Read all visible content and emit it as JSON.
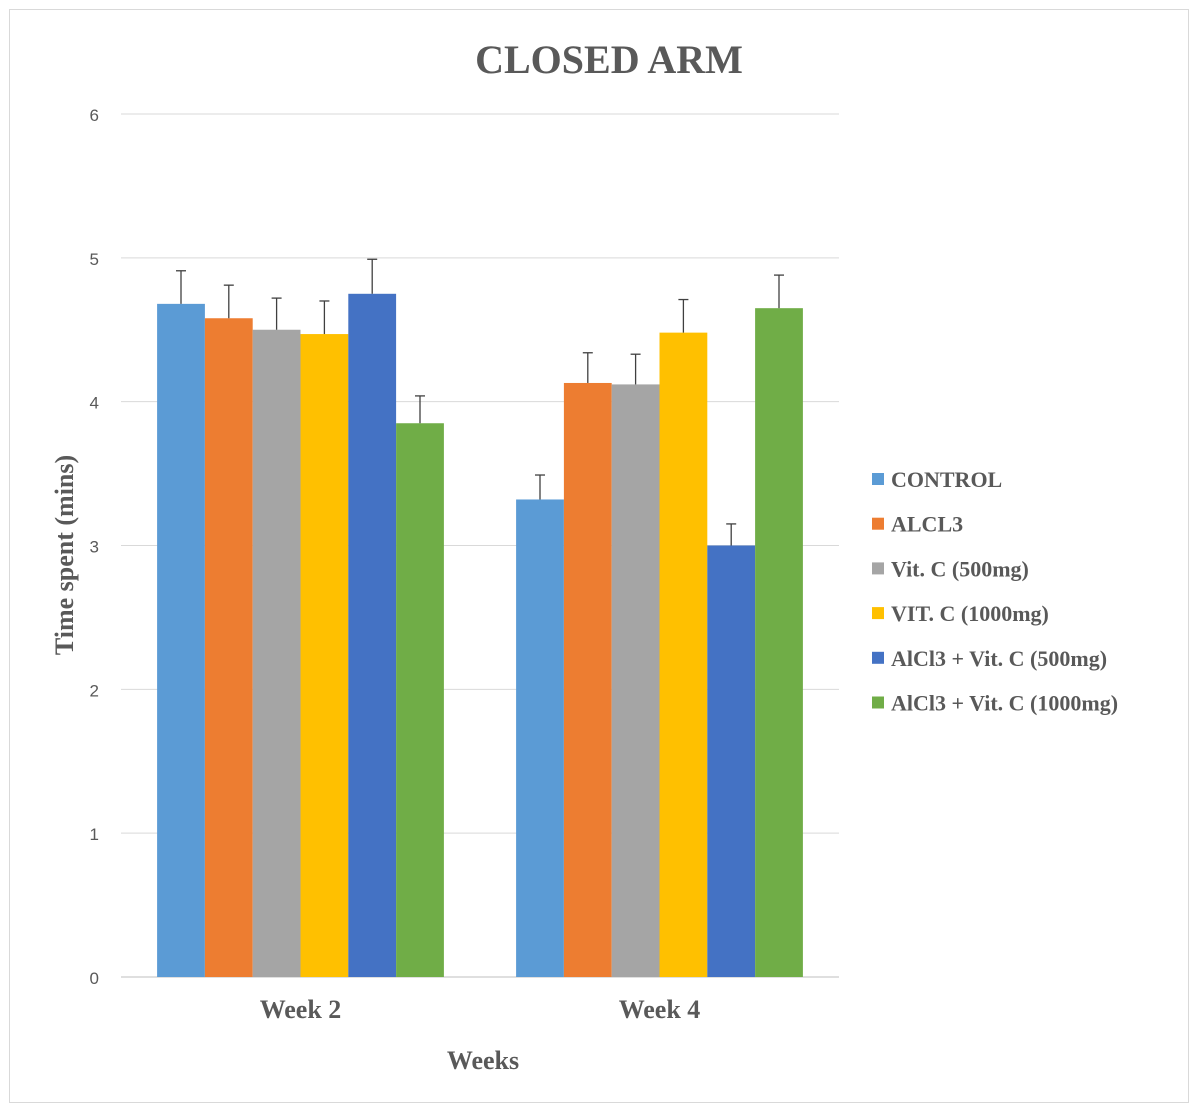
{
  "chart_data": {
    "type": "bar",
    "title": "CLOSED ARM",
    "xlabel": "Weeks",
    "ylabel": "Time spent (mins)",
    "categories": [
      "Week 2",
      "Week 4"
    ],
    "ylim": [
      0,
      6
    ],
    "yticks": [
      "0",
      "1",
      "2",
      "3",
      "4",
      "5",
      "6"
    ],
    "grid": true,
    "legend_position": "right",
    "series": [
      {
        "name": "CONTROL",
        "color": "#5b9bd5",
        "values": [
          4.68,
          3.32
        ],
        "errors": [
          0.23,
          0.17
        ]
      },
      {
        "name": "ALCL3",
        "color": "#ed7d31",
        "values": [
          4.58,
          4.13
        ],
        "errors": [
          0.23,
          0.21
        ]
      },
      {
        "name": "Vit. C (500mg)",
        "color": "#a5a5a5",
        "values": [
          4.5,
          4.12
        ],
        "errors": [
          0.22,
          0.21
        ]
      },
      {
        "name": "VIT. C (1000mg)",
        "color": "#ffc000",
        "values": [
          4.47,
          4.48
        ],
        "errors": [
          0.23,
          0.23
        ]
      },
      {
        "name": "AlCl3 + Vit. C (500mg)",
        "color": "#4472c4",
        "values": [
          4.75,
          3.0
        ],
        "errors": [
          0.24,
          0.15
        ]
      },
      {
        "name": "AlCl3 + Vit. C (1000mg)",
        "color": "#70ad47",
        "values": [
          3.85,
          4.65
        ],
        "errors": [
          0.19,
          0.23
        ]
      }
    ]
  }
}
